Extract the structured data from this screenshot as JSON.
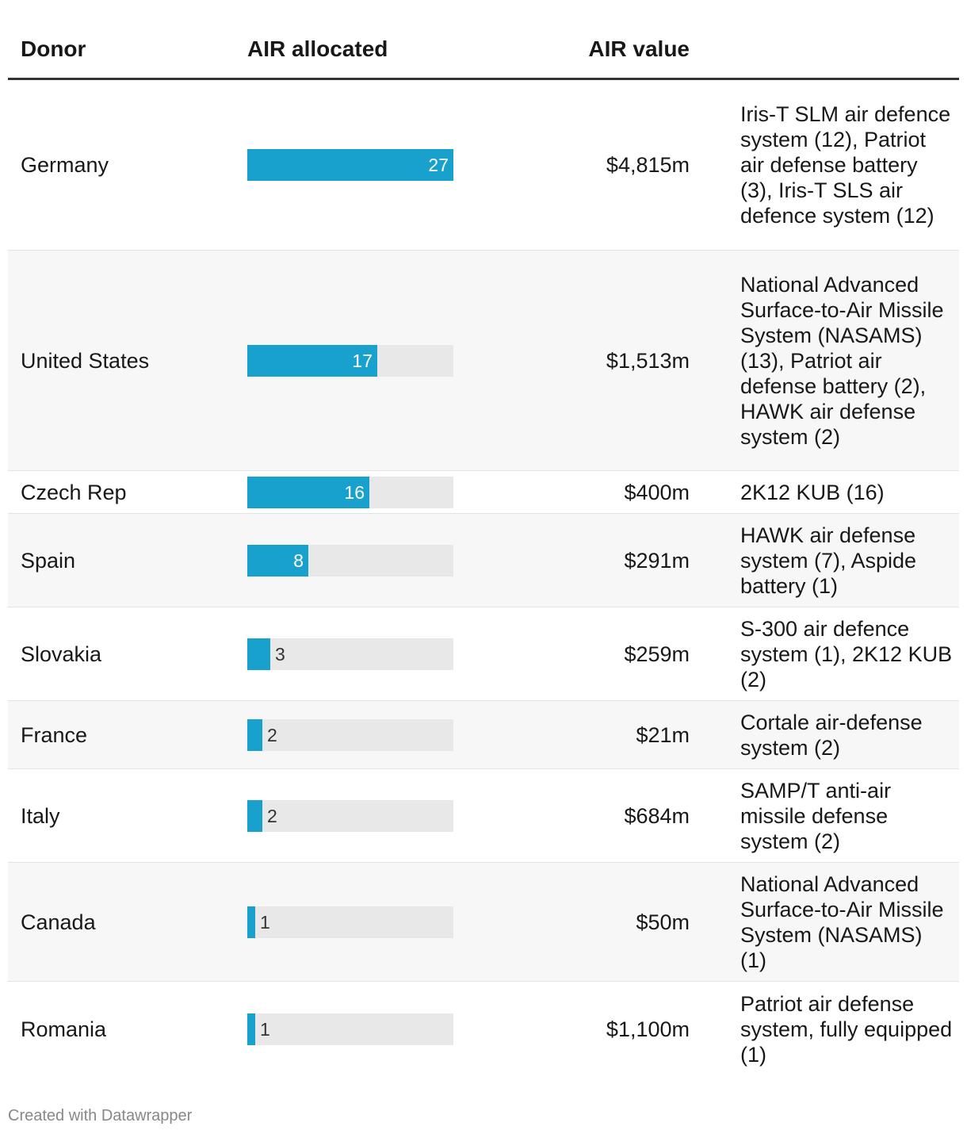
{
  "chart_data": {
    "type": "table",
    "columns": [
      "Donor",
      "AIR allocated",
      "AIR value",
      ""
    ],
    "max_value": 27,
    "rows": [
      {
        "donor": "Germany",
        "allocated": 27,
        "value": "$4,815m",
        "systems": "Iris-T SLM air defence system (12), Patriot air defense battery (3), Iris-T SLS air defence system (12)"
      },
      {
        "donor": "United States",
        "allocated": 17,
        "value": "$1,513m",
        "systems": "National Advanced Surface-to-Air Missile System (NASAMS) (13), Patriot air defense battery (2), HAWK air defense system (2)"
      },
      {
        "donor": "Czech Rep",
        "allocated": 16,
        "value": "$400m",
        "systems": "2K12 KUB (16)"
      },
      {
        "donor": "Spain",
        "allocated": 8,
        "value": "$291m",
        "systems": "HAWK air defense system (7), Aspide battery (1)"
      },
      {
        "donor": "Slovakia",
        "allocated": 3,
        "value": "$259m",
        "systems": "S-300 air defence system (1), 2K12 KUB (2)"
      },
      {
        "donor": "France",
        "allocated": 2,
        "value": "$21m",
        "systems": "Cortale air-defense system (2)"
      },
      {
        "donor": "Italy",
        "allocated": 2,
        "value": "$684m",
        "systems": "SAMP/T anti-air missile defense system (2)"
      },
      {
        "donor": "Canada",
        "allocated": 1,
        "value": "$50m",
        "systems": "National Advanced Surface-to-Air Missile System (NASAMS) (1)"
      },
      {
        "donor": "Romania",
        "allocated": 1,
        "value": "$1,100m",
        "systems": "Patriot air defense system, fully equipped (1)"
      }
    ]
  },
  "colors": {
    "bar": "#18a1cd",
    "track": "#e8e8e8",
    "stripe": "#f7f7f7"
  },
  "footer": "Created with Datawrapper"
}
